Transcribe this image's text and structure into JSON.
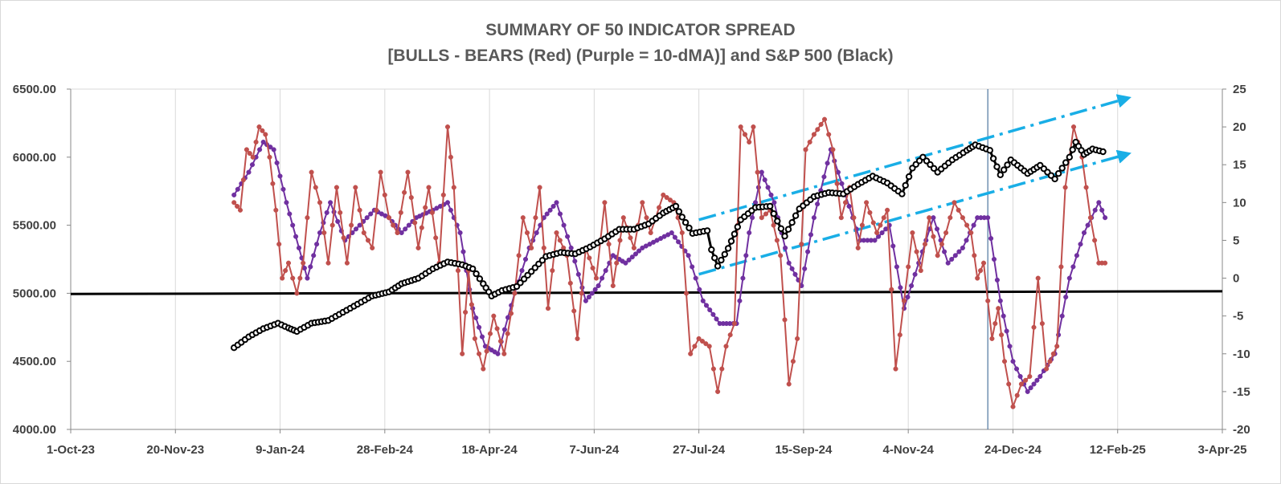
{
  "chart_data": {
    "type": "line",
    "title": "SUMMARY OF 50 INDICATOR SPREAD",
    "subtitle": "[BULLS - BEARS (Red) (Purple = 10-dMA)] and S&P 500 (Black)",
    "x_axis": {
      "type": "date",
      "range": [
        "2023-10-01",
        "2025-04-03"
      ],
      "tick_labels": [
        "1-Oct-23",
        "20-Nov-23",
        "9-Jan-24",
        "28-Feb-24",
        "18-Apr-24",
        "7-Jun-24",
        "27-Jul-24",
        "15-Sep-24",
        "4-Nov-24",
        "24-Dec-24",
        "12-Feb-25",
        "3-Apr-25"
      ],
      "tick_dates": [
        "2023-10-01",
        "2023-11-20",
        "2024-01-09",
        "2024-02-28",
        "2024-04-18",
        "2024-06-07",
        "2024-07-27",
        "2024-09-15",
        "2024-11-04",
        "2024-12-24",
        "2025-02-12",
        "2025-04-03"
      ]
    },
    "y_left": {
      "range": [
        4000,
        6500
      ],
      "tick_labels": [
        "4000.00",
        "4500.00",
        "5000.00",
        "5500.00",
        "6000.00",
        "6500.00"
      ],
      "tick_values": [
        4000,
        4500,
        5000,
        5500,
        6000,
        6500
      ]
    },
    "y_right": {
      "range": [
        -20,
        25
      ],
      "tick_labels": [
        "-20",
        "-15",
        "-10",
        "-5",
        "0",
        "5",
        "10",
        "15",
        "20",
        "25"
      ],
      "tick_values": [
        -20,
        -15,
        -10,
        -5,
        0,
        5,
        10,
        15,
        20,
        25
      ]
    },
    "grid": "vertical",
    "colors": {
      "red": "#c0504d",
      "purple": "#7030a0",
      "black": "#000000",
      "trend": "#19aee6",
      "marker_line": "#5b7fa6"
    },
    "vertical_marker_date": "2024-12-12",
    "zero_line": {
      "axis": "right",
      "value": 0,
      "start_left": 4995,
      "end_left": 5015
    },
    "trend_channel": [
      {
        "from": [
          "2024-07-27",
          5540
        ],
        "to": [
          "2025-02-16",
          6430
        ]
      },
      {
        "from": [
          "2024-07-27",
          5140
        ],
        "to": [
          "2025-02-16",
          6020
        ]
      }
    ],
    "series": [
      {
        "axis": "left",
        "color": "#000000",
        "anchors": [
          [
            "2023-12-18",
            4600
          ],
          [
            "2023-12-25",
            4680
          ],
          [
            "2024-01-01",
            4740
          ],
          [
            "2024-01-08",
            4780
          ],
          [
            "2024-01-13",
            4745
          ],
          [
            "2024-01-17",
            4720
          ],
          [
            "2024-01-24",
            4780
          ],
          [
            "2024-02-01",
            4800
          ],
          [
            "2024-02-08",
            4860
          ],
          [
            "2024-02-15",
            4920
          ],
          [
            "2024-02-22",
            4980
          ],
          [
            "2024-03-01",
            5010
          ],
          [
            "2024-03-07",
            5070
          ],
          [
            "2024-03-15",
            5110
          ],
          [
            "2024-03-22",
            5180
          ],
          [
            "2024-03-29",
            5230
          ],
          [
            "2024-04-05",
            5210
          ],
          [
            "2024-04-10",
            5180
          ],
          [
            "2024-04-15",
            5070
          ],
          [
            "2024-04-19",
            4980
          ],
          [
            "2024-04-24",
            5020
          ],
          [
            "2024-05-01",
            5050
          ],
          [
            "2024-05-08",
            5160
          ],
          [
            "2024-05-15",
            5270
          ],
          [
            "2024-05-22",
            5300
          ],
          [
            "2024-05-29",
            5290
          ],
          [
            "2024-06-05",
            5340
          ],
          [
            "2024-06-12",
            5400
          ],
          [
            "2024-06-19",
            5470
          ],
          [
            "2024-06-26",
            5470
          ],
          [
            "2024-07-03",
            5510
          ],
          [
            "2024-07-10",
            5590
          ],
          [
            "2024-07-16",
            5640
          ],
          [
            "2024-07-19",
            5560
          ],
          [
            "2024-07-24",
            5440
          ],
          [
            "2024-07-31",
            5460
          ],
          [
            "2024-08-02",
            5320
          ],
          [
            "2024-08-05",
            5200
          ],
          [
            "2024-08-10",
            5330
          ],
          [
            "2024-08-16",
            5540
          ],
          [
            "2024-08-23",
            5630
          ],
          [
            "2024-08-30",
            5640
          ],
          [
            "2024-09-06",
            5420
          ],
          [
            "2024-09-13",
            5620
          ],
          [
            "2024-09-20",
            5710
          ],
          [
            "2024-09-27",
            5740
          ],
          [
            "2024-10-04",
            5730
          ],
          [
            "2024-10-11",
            5800
          ],
          [
            "2024-10-18",
            5860
          ],
          [
            "2024-10-25",
            5810
          ],
          [
            "2024-11-01",
            5730
          ],
          [
            "2024-11-06",
            5920
          ],
          [
            "2024-11-11",
            6000
          ],
          [
            "2024-11-18",
            5890
          ],
          [
            "2024-11-25",
            5980
          ],
          [
            "2024-12-02",
            6050
          ],
          [
            "2024-12-06",
            6090
          ],
          [
            "2024-12-13",
            6050
          ],
          [
            "2024-12-18",
            5870
          ],
          [
            "2024-12-23",
            5980
          ],
          [
            "2024-12-31",
            5880
          ],
          [
            "2025-01-06",
            5940
          ],
          [
            "2025-01-13",
            5840
          ],
          [
            "2025-01-20",
            6000
          ],
          [
            "2025-01-23",
            6110
          ],
          [
            "2025-01-27",
            6020
          ],
          [
            "2025-01-31",
            6060
          ],
          [
            "2025-02-05",
            6040
          ]
        ]
      },
      {
        "axis": "right",
        "color": "#c0504d",
        "anchors": [
          [
            "2023-12-18",
            10
          ],
          [
            "2023-12-21",
            9
          ],
          [
            "2023-12-24",
            17
          ],
          [
            "2023-12-27",
            16
          ],
          [
            "2023-12-30",
            20
          ],
          [
            "2024-01-02",
            19
          ],
          [
            "2024-01-04",
            16
          ],
          [
            "2024-01-07",
            9
          ],
          [
            "2024-01-10",
            0
          ],
          [
            "2024-01-13",
            2
          ],
          [
            "2024-01-17",
            -2
          ],
          [
            "2024-01-20",
            2
          ],
          [
            "2024-01-24",
            14
          ],
          [
            "2024-01-28",
            10
          ],
          [
            "2024-02-01",
            2
          ],
          [
            "2024-02-05",
            12
          ],
          [
            "2024-02-10",
            2
          ],
          [
            "2024-02-14",
            12
          ],
          [
            "2024-02-18",
            6
          ],
          [
            "2024-02-22",
            4
          ],
          [
            "2024-02-26",
            14
          ],
          [
            "2024-03-01",
            8
          ],
          [
            "2024-03-05",
            6
          ],
          [
            "2024-03-10",
            14
          ],
          [
            "2024-03-15",
            4
          ],
          [
            "2024-03-20",
            12
          ],
          [
            "2024-03-25",
            2
          ],
          [
            "2024-03-29",
            20
          ],
          [
            "2024-04-01",
            12
          ],
          [
            "2024-04-05",
            -10
          ],
          [
            "2024-04-08",
            1
          ],
          [
            "2024-04-11",
            -8
          ],
          [
            "2024-04-15",
            -12
          ],
          [
            "2024-04-20",
            -5
          ],
          [
            "2024-04-25",
            -10
          ],
          [
            "2024-04-30",
            -2
          ],
          [
            "2024-05-04",
            8
          ],
          [
            "2024-05-08",
            4
          ],
          [
            "2024-05-12",
            12
          ],
          [
            "2024-05-16",
            -4
          ],
          [
            "2024-05-20",
            6
          ],
          [
            "2024-05-25",
            3
          ],
          [
            "2024-05-30",
            -8
          ],
          [
            "2024-06-03",
            4
          ],
          [
            "2024-06-08",
            0
          ],
          [
            "2024-06-12",
            10
          ],
          [
            "2024-06-16",
            -1
          ],
          [
            "2024-06-21",
            8
          ],
          [
            "2024-06-26",
            4
          ],
          [
            "2024-06-30",
            10
          ],
          [
            "2024-07-04",
            6
          ],
          [
            "2024-07-10",
            11
          ],
          [
            "2024-07-15",
            10
          ],
          [
            "2024-07-19",
            6
          ],
          [
            "2024-07-23",
            -10
          ],
          [
            "2024-07-27",
            -8
          ],
          [
            "2024-08-01",
            -9
          ],
          [
            "2024-08-05",
            -15
          ],
          [
            "2024-08-09",
            -9
          ],
          [
            "2024-08-13",
            -6
          ],
          [
            "2024-08-16",
            20
          ],
          [
            "2024-08-20",
            18
          ],
          [
            "2024-08-22",
            20
          ],
          [
            "2024-08-26",
            8
          ],
          [
            "2024-08-30",
            9
          ],
          [
            "2024-09-04",
            3
          ],
          [
            "2024-09-08",
            -14
          ],
          [
            "2024-09-12",
            -8
          ],
          [
            "2024-09-16",
            17
          ],
          [
            "2024-09-20",
            19
          ],
          [
            "2024-09-25",
            21
          ],
          [
            "2024-09-29",
            17
          ],
          [
            "2024-10-03",
            8
          ],
          [
            "2024-10-07",
            12
          ],
          [
            "2024-10-11",
            4
          ],
          [
            "2024-10-15",
            10
          ],
          [
            "2024-10-20",
            6
          ],
          [
            "2024-10-25",
            9
          ],
          [
            "2024-10-29",
            -12
          ],
          [
            "2024-11-02",
            -3
          ],
          [
            "2024-11-06",
            6
          ],
          [
            "2024-11-10",
            1
          ],
          [
            "2024-11-14",
            8
          ],
          [
            "2024-11-18",
            3
          ],
          [
            "2024-11-22",
            6
          ],
          [
            "2024-11-26",
            10
          ],
          [
            "2024-11-30",
            8
          ],
          [
            "2024-12-04",
            6
          ],
          [
            "2024-12-07",
            0
          ],
          [
            "2024-12-10",
            2
          ],
          [
            "2024-12-14",
            -8
          ],
          [
            "2024-12-17",
            -4
          ],
          [
            "2024-12-20",
            -11
          ],
          [
            "2024-12-24",
            -17
          ],
          [
            "2024-12-28",
            -14
          ],
          [
            "2025-01-01",
            -13
          ],
          [
            "2025-01-05",
            0
          ],
          [
            "2025-01-09",
            -12
          ],
          [
            "2025-01-14",
            -9
          ],
          [
            "2025-01-18",
            12
          ],
          [
            "2025-01-22",
            20
          ],
          [
            "2025-01-26",
            16
          ],
          [
            "2025-01-30",
            8
          ],
          [
            "2025-02-03",
            2
          ],
          [
            "2025-02-06",
            2
          ]
        ]
      },
      {
        "axis": "right",
        "color": "#7030a0",
        "anchors": [
          [
            "2023-12-18",
            11
          ],
          [
            "2023-12-25",
            14
          ],
          [
            "2024-01-01",
            18
          ],
          [
            "2024-01-06",
            17
          ],
          [
            "2024-01-12",
            10
          ],
          [
            "2024-01-18",
            4
          ],
          [
            "2024-01-22",
            0
          ],
          [
            "2024-01-28",
            6
          ],
          [
            "2024-02-02",
            10
          ],
          [
            "2024-02-09",
            5
          ],
          [
            "2024-02-16",
            7
          ],
          [
            "2024-02-23",
            9
          ],
          [
            "2024-03-01",
            8
          ],
          [
            "2024-03-07",
            6
          ],
          [
            "2024-03-14",
            8
          ],
          [
            "2024-03-22",
            9
          ],
          [
            "2024-03-29",
            10
          ],
          [
            "2024-04-04",
            6
          ],
          [
            "2024-04-10",
            -4
          ],
          [
            "2024-04-16",
            -9
          ],
          [
            "2024-04-22",
            -10
          ],
          [
            "2024-04-30",
            -2
          ],
          [
            "2024-05-07",
            4
          ],
          [
            "2024-05-14",
            8
          ],
          [
            "2024-05-20",
            10
          ],
          [
            "2024-05-27",
            4
          ],
          [
            "2024-06-03",
            -3
          ],
          [
            "2024-06-09",
            -1
          ],
          [
            "2024-06-16",
            3
          ],
          [
            "2024-06-22",
            2
          ],
          [
            "2024-06-30",
            4
          ],
          [
            "2024-07-07",
            5
          ],
          [
            "2024-07-14",
            6
          ],
          [
            "2024-07-22",
            3
          ],
          [
            "2024-07-29",
            -3
          ],
          [
            "2024-08-06",
            -6
          ],
          [
            "2024-08-14",
            -6
          ],
          [
            "2024-08-20",
            6
          ],
          [
            "2024-08-26",
            14
          ],
          [
            "2024-09-01",
            10
          ],
          [
            "2024-09-08",
            2
          ],
          [
            "2024-09-14",
            -1
          ],
          [
            "2024-09-20",
            8
          ],
          [
            "2024-09-28",
            17
          ],
          [
            "2024-10-05",
            11
          ],
          [
            "2024-10-12",
            5
          ],
          [
            "2024-10-19",
            5
          ],
          [
            "2024-10-26",
            7
          ],
          [
            "2024-11-02",
            -4
          ],
          [
            "2024-11-09",
            2
          ],
          [
            "2024-11-16",
            8
          ],
          [
            "2024-11-23",
            2
          ],
          [
            "2024-11-30",
            4
          ],
          [
            "2024-12-07",
            8
          ],
          [
            "2024-12-12",
            8
          ],
          [
            "2024-12-18",
            -3
          ],
          [
            "2024-12-24",
            -11
          ],
          [
            "2024-12-31",
            -15
          ],
          [
            "2025-01-06",
            -13
          ],
          [
            "2025-01-13",
            -10
          ],
          [
            "2025-01-20",
            0
          ],
          [
            "2025-01-27",
            6
          ],
          [
            "2025-02-03",
            10
          ],
          [
            "2025-02-06",
            8
          ]
        ]
      }
    ]
  }
}
